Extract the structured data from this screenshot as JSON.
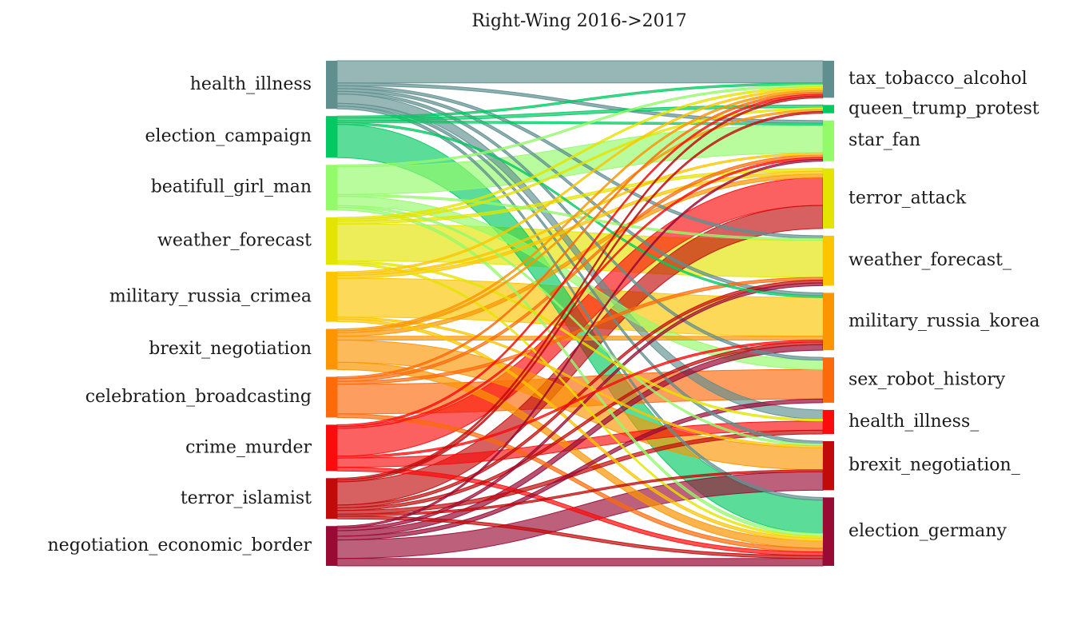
{
  "title": "Right-Wing 2016->2017",
  "left_nodes": [
    {
      "id": "L0",
      "label": "health_illness",
      "color": "#5f8f8f"
    },
    {
      "id": "L1",
      "label": "election_campaign",
      "color": "#04c962"
    },
    {
      "id": "L2",
      "label": "beatifull_girl_man",
      "color": "#93fa6a"
    },
    {
      "id": "L3",
      "label": "weather_forecast",
      "color": "#e3e400"
    },
    {
      "id": "L4",
      "label": "military_russia_crimea",
      "color": "#fcc500"
    },
    {
      "id": "L5",
      "label": "brexit_negotiation",
      "color": "#fb9502"
    },
    {
      "id": "L6",
      "label": "celebration_broadcasting",
      "color": "#fc6a0a"
    },
    {
      "id": "L7",
      "label": "crime_murder",
      "color": "#fb0c0c"
    },
    {
      "id": "L8",
      "label": "terror_islamist",
      "color": "#c10b0b"
    },
    {
      "id": "L9",
      "label": "negotiation_economic_border",
      "color": "#990a34"
    }
  ],
  "right_nodes": [
    {
      "id": "R0",
      "label": "tax_tobacco_alcohol",
      "color": "#5f8f8f"
    },
    {
      "id": "R1",
      "label": "queen_trump_protest",
      "color": "#04c962"
    },
    {
      "id": "R2",
      "label": "star_fan",
      "color": "#93fa6a"
    },
    {
      "id": "R3",
      "label": "terror_attack",
      "color": "#e3e400"
    },
    {
      "id": "R4",
      "label": "weather_forecast_",
      "color": "#fcc500"
    },
    {
      "id": "R5",
      "label": "military_russia_korea",
      "color": "#fb9502"
    },
    {
      "id": "R6",
      "label": "sex_robot_history",
      "color": "#fc6a0a"
    },
    {
      "id": "R7",
      "label": "health_illness_",
      "color": "#fb0c0c"
    },
    {
      "id": "R8",
      "label": "brexit_negotiation_",
      "color": "#c10b0b"
    },
    {
      "id": "R9",
      "label": "election_germany",
      "color": "#990a34"
    }
  ],
  "links": [
    {
      "source": "L0",
      "target": "R0",
      "value": 24
    },
    {
      "source": "L0",
      "target": "R2",
      "value": 3
    },
    {
      "source": "L0",
      "target": "R4",
      "value": 3
    },
    {
      "source": "L0",
      "target": "R5",
      "value": 3
    },
    {
      "source": "L0",
      "target": "R6",
      "value": 3
    },
    {
      "source": "L0",
      "target": "R7",
      "value": 10
    },
    {
      "source": "L0",
      "target": "R8",
      "value": 3
    },
    {
      "source": "L0",
      "target": "R9",
      "value": 3
    },
    {
      "source": "L1",
      "target": "R0",
      "value": 2
    },
    {
      "source": "L1",
      "target": "R1",
      "value": 3
    },
    {
      "source": "L1",
      "target": "R2",
      "value": 2
    },
    {
      "source": "L1",
      "target": "R5",
      "value": 2
    },
    {
      "source": "L1",
      "target": "R9",
      "value": 36
    },
    {
      "source": "L2",
      "target": "R0",
      "value": 2
    },
    {
      "source": "L2",
      "target": "R2",
      "value": 30
    },
    {
      "source": "L2",
      "target": "R4",
      "value": 2
    },
    {
      "source": "L2",
      "target": "R6",
      "value": 10
    },
    {
      "source": "L2",
      "target": "R8",
      "value": 2
    },
    {
      "source": "L2",
      "target": "R9",
      "value": 3
    },
    {
      "source": "L3",
      "target": "R0",
      "value": 2
    },
    {
      "source": "L3",
      "target": "R1",
      "value": 2
    },
    {
      "source": "L3",
      "target": "R3",
      "value": 3
    },
    {
      "source": "L3",
      "target": "R4",
      "value": 40
    },
    {
      "source": "L3",
      "target": "R7",
      "value": 2
    },
    {
      "source": "L3",
      "target": "R9",
      "value": 2
    },
    {
      "source": "L4",
      "target": "R0",
      "value": 2
    },
    {
      "source": "L4",
      "target": "R2",
      "value": 2
    },
    {
      "source": "L4",
      "target": "R3",
      "value": 3
    },
    {
      "source": "L4",
      "target": "R5",
      "value": 42
    },
    {
      "source": "L4",
      "target": "R8",
      "value": 2
    },
    {
      "source": "L4",
      "target": "R9",
      "value": 3
    },
    {
      "source": "L5",
      "target": "R0",
      "value": 2
    },
    {
      "source": "L5",
      "target": "R1",
      "value": 2
    },
    {
      "source": "L5",
      "target": "R3",
      "value": 4
    },
    {
      "source": "L5",
      "target": "R5",
      "value": 4
    },
    {
      "source": "L5",
      "target": "R8",
      "value": 24
    },
    {
      "source": "L5",
      "target": "R9",
      "value": 8
    },
    {
      "source": "L6",
      "target": "R0",
      "value": 2
    },
    {
      "source": "L6",
      "target": "R2",
      "value": 3
    },
    {
      "source": "L6",
      "target": "R4",
      "value": 3
    },
    {
      "source": "L6",
      "target": "R6",
      "value": 32
    },
    {
      "source": "L6",
      "target": "R9",
      "value": 4
    },
    {
      "source": "L7",
      "target": "R0",
      "value": 2
    },
    {
      "source": "L7",
      "target": "R2",
      "value": 2
    },
    {
      "source": "L7",
      "target": "R3",
      "value": 30
    },
    {
      "source": "L7",
      "target": "R5",
      "value": 2
    },
    {
      "source": "L7",
      "target": "R7",
      "value": 10
    },
    {
      "source": "L7",
      "target": "R9",
      "value": 4
    },
    {
      "source": "L8",
      "target": "R0",
      "value": 2
    },
    {
      "source": "L8",
      "target": "R1",
      "value": 2
    },
    {
      "source": "L8",
      "target": "R3",
      "value": 25
    },
    {
      "source": "L8",
      "target": "R4",
      "value": 3
    },
    {
      "source": "L8",
      "target": "R5",
      "value": 3
    },
    {
      "source": "L8",
      "target": "R7",
      "value": 4
    },
    {
      "source": "L8",
      "target": "R8",
      "value": 2
    },
    {
      "source": "L8",
      "target": "R9",
      "value": 3
    },
    {
      "source": "L9",
      "target": "R2",
      "value": 2
    },
    {
      "source": "L9",
      "target": "R4",
      "value": 3
    },
    {
      "source": "L9",
      "target": "R5",
      "value": 6
    },
    {
      "source": "L9",
      "target": "R6",
      "value": 4
    },
    {
      "source": "L9",
      "target": "R8",
      "value": 20
    },
    {
      "source": "L9",
      "target": "R9",
      "value": 8
    }
  ]
}
